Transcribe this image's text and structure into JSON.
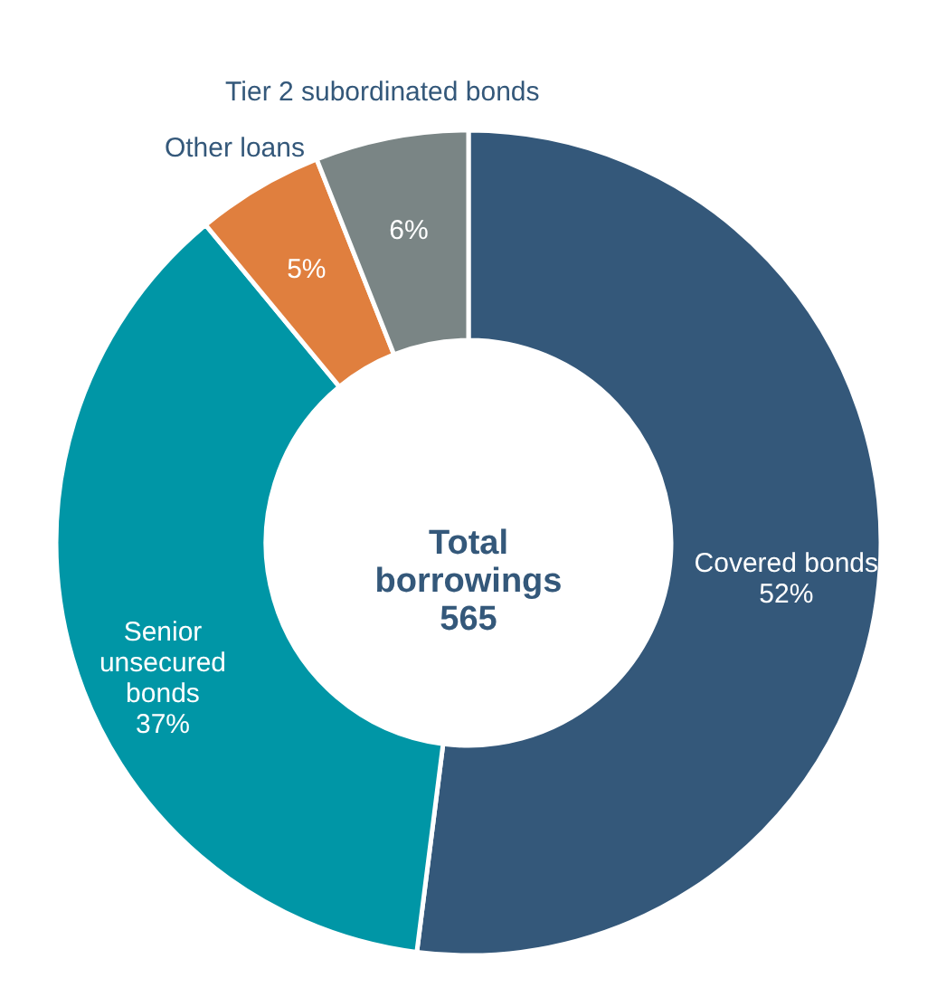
{
  "chart_data": {
    "type": "donut",
    "categories": [
      "Covered bonds",
      "Senior unsecured bonds",
      "Other loans",
      "Tier 2 subordinated bonds"
    ],
    "values": [
      52,
      37,
      5,
      6
    ],
    "colors": [
      "#34587a",
      "#0096a6",
      "#e07f3e",
      "#7a8585"
    ],
    "value_labels": [
      "52%",
      "37%",
      "5%",
      "6%"
    ],
    "annotations": [
      "Total borrowings 565"
    ]
  }
}
